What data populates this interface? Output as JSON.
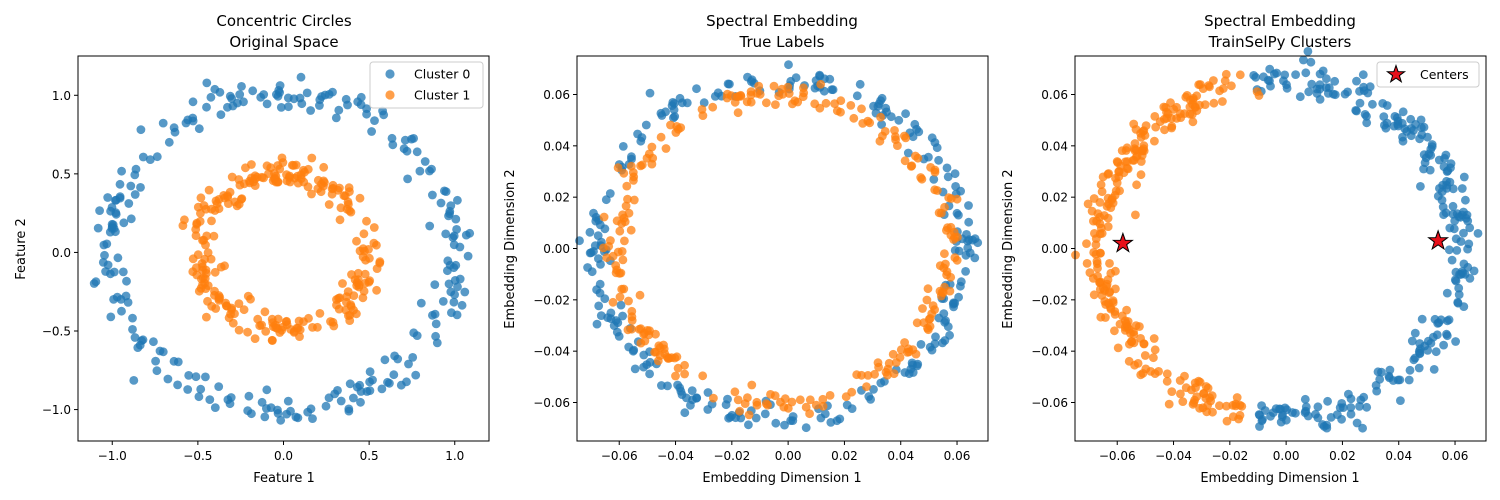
{
  "figure": {
    "colors": {
      "cluster0": "#1f77b4",
      "cluster1": "#ff7f0e",
      "center": "#e8101a"
    },
    "panels": [
      {
        "id": "orig",
        "title_line1": "Concentric Circles",
        "title_line2": "Original Space",
        "xlabel": "Feature 1",
        "ylabel": "Feature 2",
        "legend": [
          "Cluster 0",
          "Cluster 1"
        ]
      },
      {
        "id": "true",
        "title_line1": "Spectral Embedding",
        "title_line2": "True Labels",
        "xlabel": "Embedding Dimension 1",
        "ylabel": "Embedding Dimension 2"
      },
      {
        "id": "train",
        "title_line1": "Spectral Embedding",
        "title_line2": "TrainSelPy Clusters",
        "xlabel": "Embedding Dimension 1",
        "ylabel": "Embedding Dimension 2",
        "legend": [
          "Centers"
        ]
      }
    ]
  },
  "chart_data": [
    {
      "type": "scatter",
      "title": "Concentric Circles\nOriginal Space",
      "xlabel": "Feature 1",
      "ylabel": "Feature 2",
      "xlim": [
        -1.2,
        1.2
      ],
      "ylim": [
        -1.2,
        1.25
      ],
      "xticks": [
        -1.0,
        -0.5,
        0.0,
        0.5,
        1.0
      ],
      "xtick_labels": [
        "−1.0",
        "−0.5",
        "0.0",
        "0.5",
        "1.0"
      ],
      "yticks": [
        -1.0,
        -0.5,
        0.0,
        0.5,
        1.0
      ],
      "ytick_labels": [
        "−1.0",
        "−0.5",
        "0.0",
        "0.5",
        "1.0"
      ],
      "legend_position": "top-right",
      "series": [
        {
          "name": "Cluster 0",
          "shape": "ring",
          "center": [
            0,
            0
          ],
          "radius": 1.0,
          "noise": 0.05,
          "count": 250
        },
        {
          "name": "Cluster 1",
          "shape": "ring",
          "center": [
            0,
            0
          ],
          "radius": 0.5,
          "noise": 0.05,
          "count": 250
        }
      ]
    },
    {
      "type": "scatter",
      "title": "Spectral Embedding\nTrue Labels",
      "xlabel": "Embedding Dimension 1",
      "ylabel": "Embedding Dimension 2",
      "xlim": [
        -0.075,
        0.071
      ],
      "ylim": [
        -0.075,
        0.075
      ],
      "xticks": [
        -0.06,
        -0.04,
        -0.02,
        0.0,
        0.02,
        0.04,
        0.06
      ],
      "xtick_labels": [
        "−0.06",
        "−0.04",
        "−0.02",
        "0.00",
        "0.02",
        "0.04",
        "0.06"
      ],
      "yticks": [
        -0.06,
        -0.04,
        -0.02,
        0.0,
        0.02,
        0.04,
        0.06
      ],
      "ytick_labels": [
        "−0.06",
        "−0.04",
        "−0.02",
        "0.00",
        "0.02",
        "0.04",
        "0.06"
      ],
      "series": [
        {
          "name": "Cluster 0",
          "shape": "ring",
          "center": [
            -0.003,
            0.0
          ],
          "radius_x": 0.066,
          "radius_y": 0.066,
          "noise": 0.0025,
          "count": 250
        },
        {
          "name": "Cluster 1",
          "shape": "ring",
          "center": [
            -0.002,
            0.0
          ],
          "radius_x": 0.059,
          "radius_y": 0.06,
          "noise": 0.0025,
          "count": 250
        }
      ]
    },
    {
      "type": "scatter",
      "title": "Spectral Embedding\nTrainSelPy Clusters",
      "xlabel": "Embedding Dimension 1",
      "ylabel": "Embedding Dimension 2",
      "xlim": [
        -0.075,
        0.071
      ],
      "ylim": [
        -0.075,
        0.075
      ],
      "xticks": [
        -0.06,
        -0.04,
        -0.02,
        0.0,
        0.02,
        0.04,
        0.06
      ],
      "xtick_labels": [
        "−0.06",
        "−0.04",
        "−0.02",
        "0.00",
        "0.02",
        "0.04",
        "0.06"
      ],
      "yticks": [
        -0.06,
        -0.04,
        -0.02,
        0.0,
        0.02,
        0.04,
        0.06
      ],
      "ytick_labels": [
        "−0.06",
        "−0.04",
        "−0.02",
        "0.00",
        "0.02",
        "0.04",
        "0.06"
      ],
      "legend_position": "top-right",
      "series": [
        {
          "name": "Cluster 0",
          "shape": "ring-half",
          "side": "right",
          "center": [
            -0.003,
            0.0
          ],
          "radius_x": 0.065,
          "radius_y": 0.066,
          "noise": 0.003,
          "count": 250
        },
        {
          "name": "Cluster 1",
          "shape": "ring-half",
          "side": "left",
          "center": [
            -0.003,
            0.0
          ],
          "radius_x": 0.063,
          "radius_y": 0.064,
          "noise": 0.003,
          "count": 250
        },
        {
          "name": "Centers",
          "shape": "star",
          "points": [
            [
              -0.058,
              0.002
            ],
            [
              0.054,
              0.003
            ]
          ]
        }
      ]
    }
  ]
}
